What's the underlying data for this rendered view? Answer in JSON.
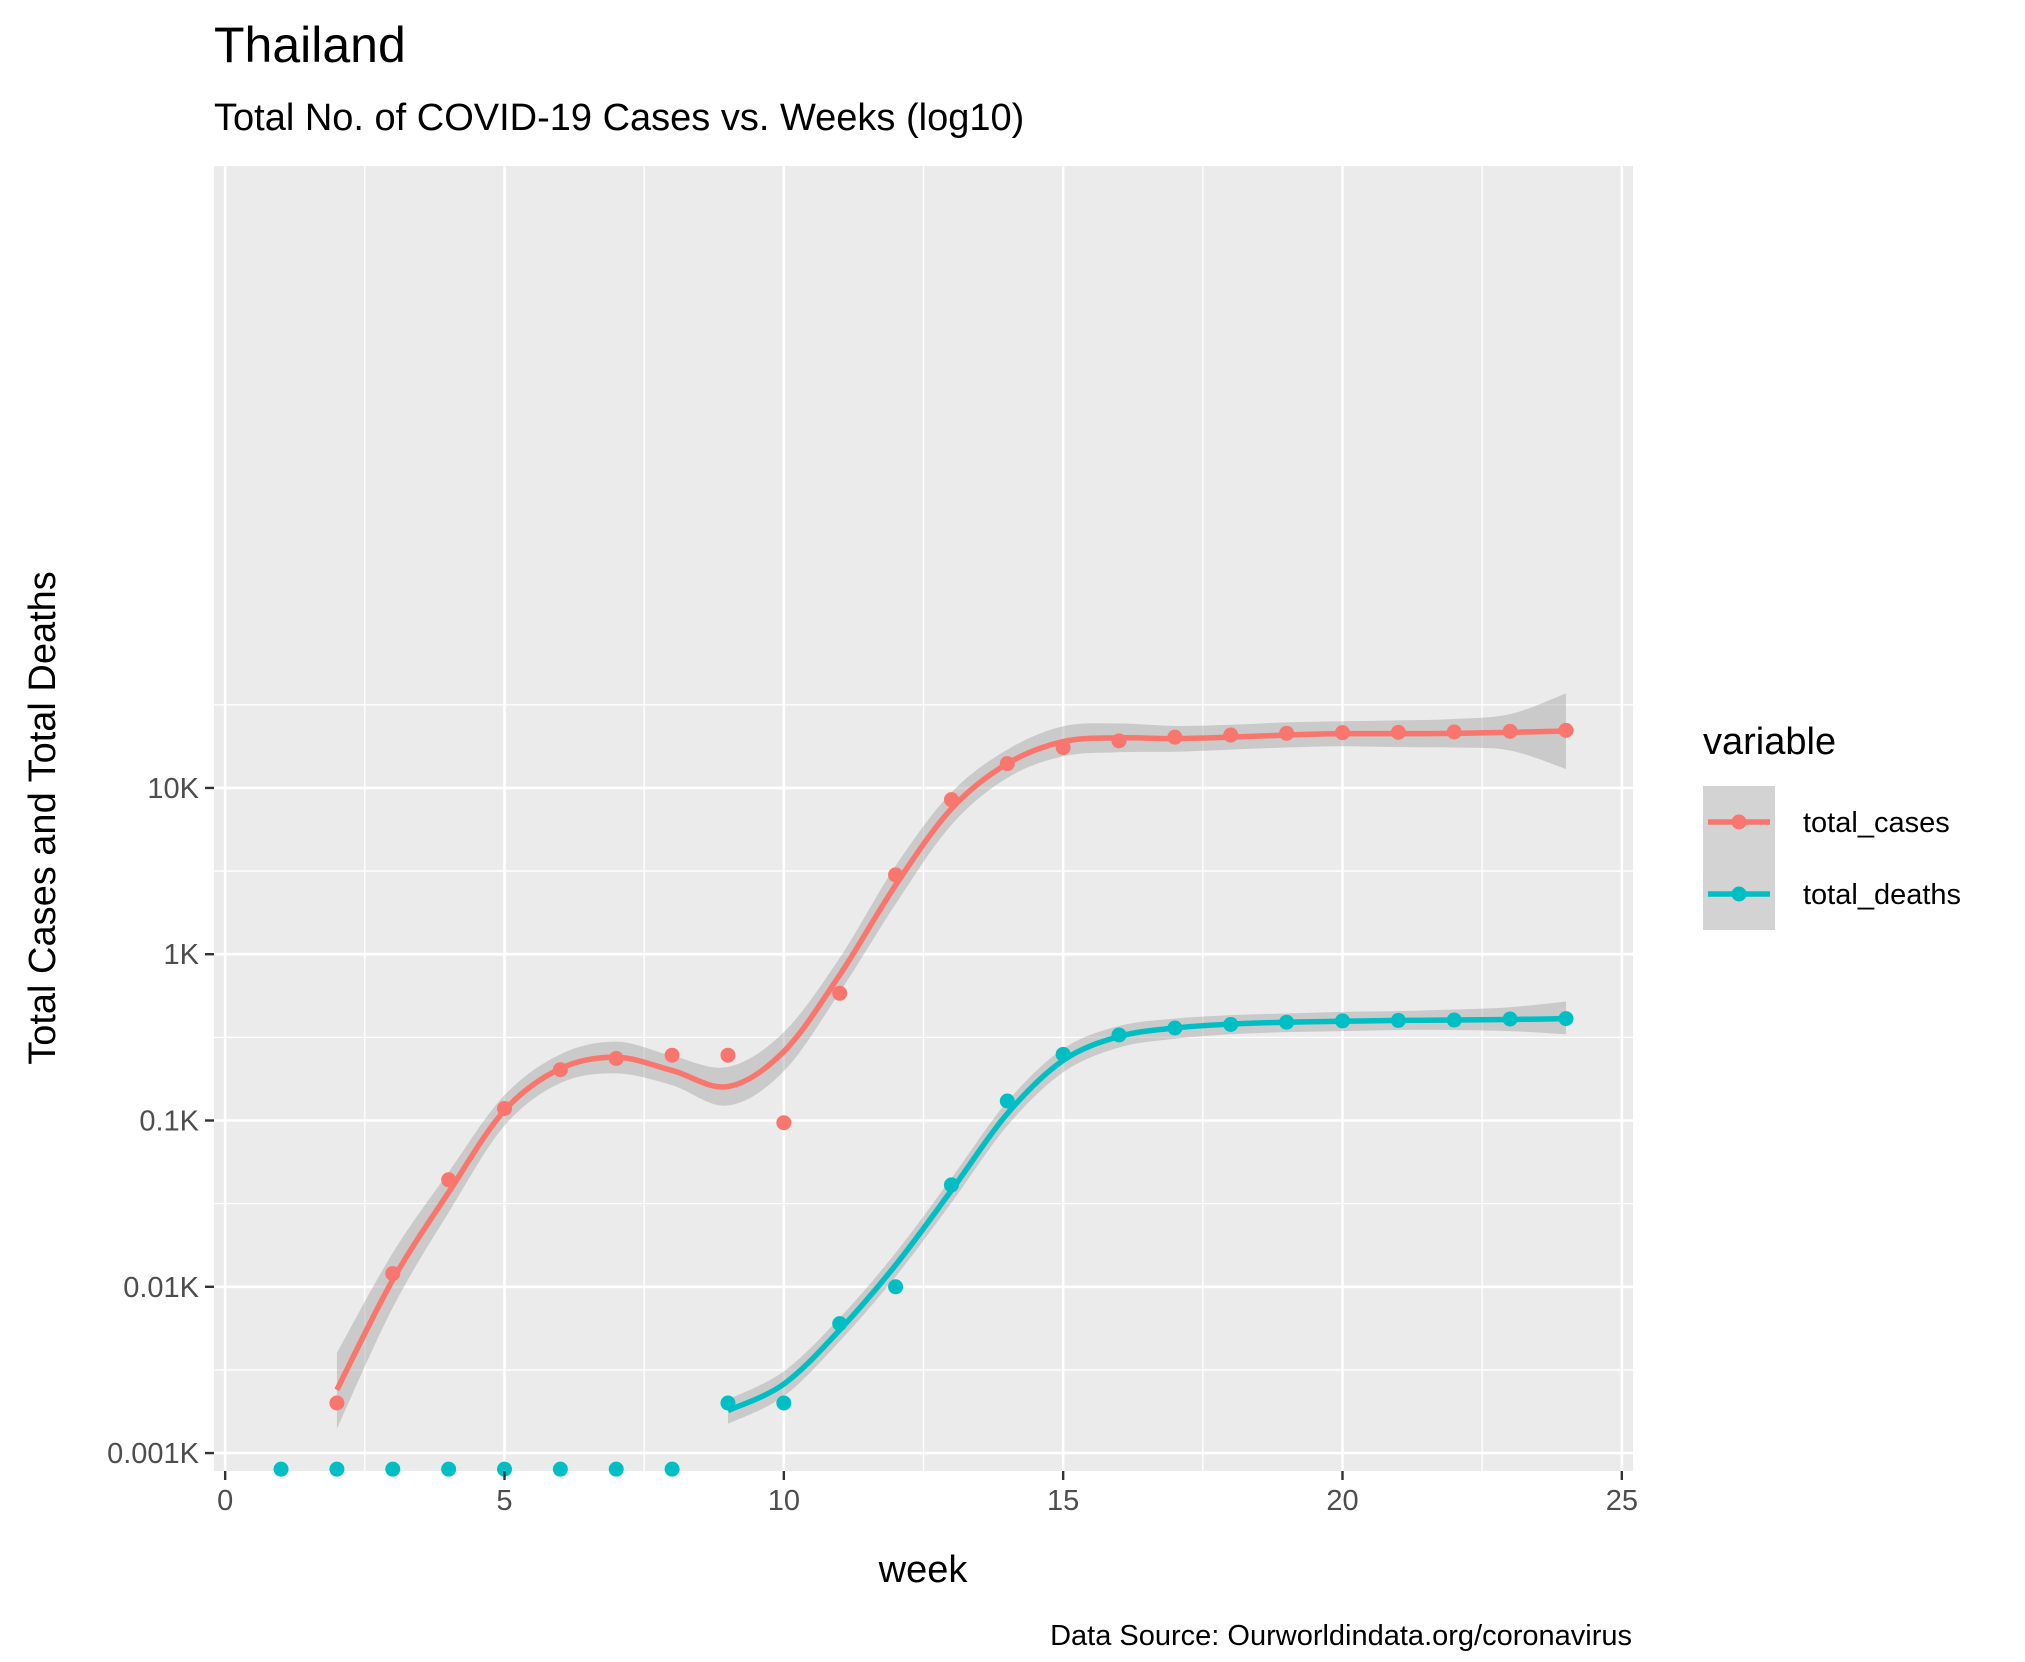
{
  "chart_data": {
    "type": "scatter",
    "title": "Thailand",
    "subtitle": "Total No. of COVID-19 Cases vs. Weeks (log10)",
    "xlabel": "week",
    "ylabel": "Total Cases and Total Deaths",
    "caption": "Data Source: Ourworldindata.org/coronavirus",
    "x_scale": "linear",
    "y_scale": "log10",
    "xlim": [
      -0.2,
      25.2
    ],
    "ylim": [
      0.00078,
      55000
    ],
    "x_ticks": [
      0,
      5,
      10,
      15,
      20,
      25
    ],
    "x_tick_labels": [
      "0",
      "5",
      "10",
      "15",
      "20",
      "25"
    ],
    "y_ticks": [
      0.001,
      0.01,
      0.1,
      1,
      10
    ],
    "y_tick_labels": [
      "0.001K",
      "0.01K",
      "0.1K",
      "1K",
      "10K"
    ],
    "grid": true,
    "panel_background": "#ebebeb",
    "legend": {
      "title": "variable",
      "position": "right"
    },
    "series": [
      {
        "name": "total_cases",
        "color": "#f8766d",
        "points": [
          [
            2,
            0.002
          ],
          [
            3,
            0.012
          ],
          [
            4,
            0.044
          ],
          [
            5,
            0.118
          ],
          [
            6,
            0.202
          ],
          [
            7,
            0.236
          ],
          [
            8,
            0.247
          ],
          [
            9,
            0.247
          ],
          [
            10,
            0.097
          ],
          [
            11,
            0.582
          ],
          [
            12,
            3.0
          ],
          [
            13,
            8.5
          ],
          [
            14,
            14.0
          ],
          [
            15,
            17.5
          ],
          [
            16,
            19.2
          ],
          [
            17,
            20.2
          ],
          [
            18,
            20.8
          ],
          [
            19,
            21.3
          ],
          [
            20,
            21.5
          ],
          [
            21,
            21.6
          ],
          [
            22,
            21.7
          ],
          [
            23,
            21.9
          ],
          [
            24,
            22.2
          ]
        ],
        "smooth": [
          [
            2,
            0.0024,
            0.0014,
            0.004
          ],
          [
            3,
            0.011,
            0.0075,
            0.016
          ],
          [
            4,
            0.037,
            0.028,
            0.049
          ],
          [
            5,
            0.115,
            0.093,
            0.142
          ],
          [
            6,
            0.205,
            0.168,
            0.25
          ],
          [
            7,
            0.24,
            0.192,
            0.298
          ],
          [
            8,
            0.2,
            0.163,
            0.245
          ],
          [
            9,
            0.16,
            0.123,
            0.21
          ],
          [
            10,
            0.26,
            0.198,
            0.34
          ],
          [
            11,
            0.75,
            0.59,
            0.95
          ],
          [
            12,
            2.6,
            2.0,
            3.4
          ],
          [
            13,
            7.5,
            6.0,
            9.4
          ],
          [
            14,
            14.0,
            11.5,
            17.0
          ],
          [
            15,
            19.0,
            15.5,
            23.5
          ],
          [
            16,
            20.0,
            16.4,
            24.4
          ],
          [
            17,
            19.8,
            16.5,
            23.6
          ],
          [
            18,
            20.2,
            17.0,
            24.0
          ],
          [
            19,
            20.8,
            17.5,
            24.8
          ],
          [
            20,
            21.2,
            17.8,
            25.2
          ],
          [
            21,
            21.2,
            17.6,
            25.5
          ],
          [
            22,
            21.3,
            17.5,
            26.0
          ],
          [
            23,
            21.6,
            16.8,
            27.8
          ],
          [
            24,
            22.0,
            13.0,
            37.0
          ]
        ]
      },
      {
        "name": "total_deaths",
        "color": "#00bfc4",
        "points": [
          [
            9,
            0.002
          ],
          [
            10,
            0.002
          ],
          [
            11,
            0.006
          ],
          [
            12,
            0.01
          ],
          [
            13,
            0.041
          ],
          [
            14,
            0.131
          ],
          [
            15,
            0.25
          ],
          [
            16,
            0.327
          ],
          [
            17,
            0.36
          ],
          [
            18,
            0.378
          ],
          [
            19,
            0.39
          ],
          [
            20,
            0.397
          ],
          [
            21,
            0.4
          ],
          [
            22,
            0.402
          ],
          [
            23,
            0.408
          ],
          [
            24,
            0.41
          ]
        ],
        "smooth": [
          [
            9,
            0.0018,
            0.0015,
            0.0021
          ],
          [
            10,
            0.0026,
            0.0022,
            0.0031
          ],
          [
            11,
            0.0055,
            0.0047,
            0.0065
          ],
          [
            12,
            0.0135,
            0.0115,
            0.016
          ],
          [
            13,
            0.038,
            0.032,
            0.045
          ],
          [
            14,
            0.11,
            0.093,
            0.13
          ],
          [
            15,
            0.23,
            0.195,
            0.27
          ],
          [
            16,
            0.32,
            0.275,
            0.37
          ],
          [
            17,
            0.36,
            0.31,
            0.41
          ],
          [
            18,
            0.38,
            0.33,
            0.43
          ],
          [
            19,
            0.39,
            0.34,
            0.44
          ],
          [
            20,
            0.395,
            0.345,
            0.45
          ],
          [
            21,
            0.4,
            0.35,
            0.455
          ],
          [
            22,
            0.402,
            0.35,
            0.465
          ],
          [
            23,
            0.405,
            0.345,
            0.48
          ],
          [
            24,
            0.41,
            0.33,
            0.52
          ]
        ]
      },
      {
        "name": "total_deaths",
        "color": "#00bfc4",
        "note_points_below_axis": true,
        "points": [
          [
            1,
            0.0008
          ],
          [
            2,
            0.0008
          ],
          [
            3,
            0.0008
          ],
          [
            4,
            0.0008
          ],
          [
            5,
            0.0008
          ],
          [
            6,
            0.0008
          ],
          [
            7,
            0.0008
          ],
          [
            8,
            0.0008
          ]
        ]
      }
    ]
  }
}
